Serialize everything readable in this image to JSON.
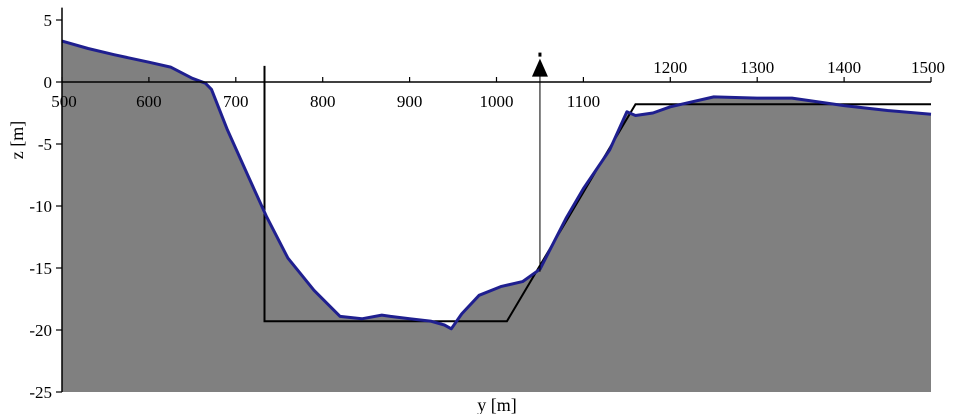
{
  "chart_data": {
    "type": "area",
    "title": "",
    "xlabel": "y [m]",
    "ylabel": "z [m]",
    "xlim": [
      500,
      1500
    ],
    "ylim": [
      -25,
      6
    ],
    "grid": false,
    "legend": "none",
    "x_ticks": [
      500,
      600,
      700,
      800,
      900,
      1000,
      1100,
      1200,
      1300,
      1400,
      1500
    ],
    "y_ticks": [
      5,
      0,
      -5,
      -10,
      -15,
      -20,
      -25
    ],
    "colors": {
      "bed_fill": "#808080",
      "bed_line": "#1f1f8f",
      "design_line": "#000000",
      "marker": "#000000"
    },
    "series": [
      {
        "role": "measured bed profile",
        "x": [
          500,
          530,
          560,
          600,
          625,
          650,
          665,
          672,
          690,
          715,
          735,
          760,
          790,
          820,
          845,
          868,
          878,
          900,
          925,
          940,
          948,
          960,
          980,
          1005,
          1030,
          1050,
          1080,
          1100,
          1130,
          1150,
          1160,
          1180,
          1200,
          1250,
          1300,
          1340,
          1400,
          1450,
          1500
        ],
        "y": [
          3.3,
          2.7,
          2.2,
          1.6,
          1.2,
          0.3,
          -0.1,
          -0.6,
          -3.8,
          -7.7,
          -10.8,
          -14.2,
          -16.8,
          -18.9,
          -19.1,
          -18.8,
          -18.9,
          -19.1,
          -19.3,
          -19.6,
          -19.9,
          -18.7,
          -17.2,
          -16.5,
          -16.1,
          -15.1,
          -11.0,
          -8.6,
          -5.5,
          -2.4,
          -2.7,
          -2.5,
          -2.0,
          -1.2,
          -1.3,
          -1.3,
          -1.9,
          -2.3,
          -2.6
        ]
      },
      {
        "role": "design cross-section",
        "x": [
          733,
          733,
          1012,
          1160,
          1500
        ],
        "y": [
          1.3,
          -19.3,
          -19.3,
          -1.8,
          -1.8
        ]
      },
      {
        "role": "marker",
        "x": [
          1050,
          1050
        ],
        "y": [
          -15.3,
          1.0
        ]
      }
    ]
  }
}
